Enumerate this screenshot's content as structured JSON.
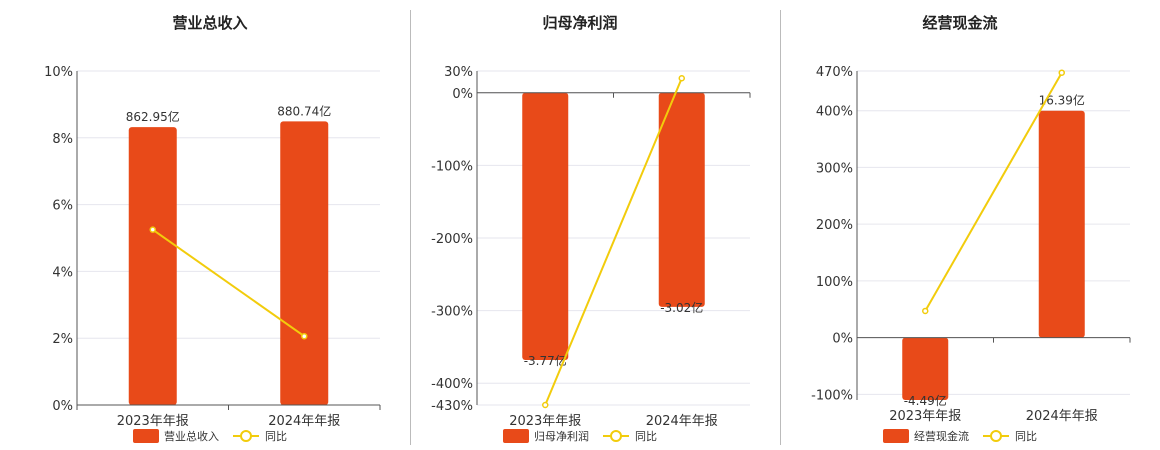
{
  "colors": {
    "bar": "#E84A19",
    "line": "#F2CC0C",
    "grid": "#E6E6EE",
    "axis": "#555555"
  },
  "legend": {
    "ratio_label": "同比"
  },
  "chart_data": [
    {
      "type": "bar",
      "title": "营业总收入",
      "categories": [
        "2023年年报",
        "2024年年报"
      ],
      "series": [
        {
          "name": "营业总收入",
          "values": [
            862.95,
            880.74
          ],
          "value_labels": [
            "862.95亿",
            "880.74亿"
          ]
        },
        {
          "name": "同比",
          "type": "line",
          "values": [
            5.25,
            2.06
          ]
        }
      ],
      "ylim": [
        0,
        10
      ],
      "yticks": [
        "0%",
        "2%",
        "4%",
        "6%",
        "8%",
        "10%"
      ],
      "ytick_values": [
        0,
        2,
        4,
        6,
        8,
        10
      ],
      "grid": true,
      "legend": "bottom"
    },
    {
      "type": "bar",
      "title": "归母净利润",
      "categories": [
        "2023年年报",
        "2024年年报"
      ],
      "series": [
        {
          "name": "归母净利润",
          "values": [
            -3.77,
            -3.02
          ],
          "value_labels": [
            "-3.77亿",
            "-3.02亿"
          ]
        },
        {
          "name": "同比",
          "type": "line",
          "values": [
            -430,
            20
          ]
        }
      ],
      "ylim": [
        -430,
        30
      ],
      "yticks": [
        "-430%",
        "-400%",
        "-300%",
        "-200%",
        "-100%",
        "0%",
        "30%"
      ],
      "ytick_values": [
        -430,
        -400,
        -300,
        -200,
        -100,
        0,
        30
      ],
      "grid": true,
      "legend": "bottom"
    },
    {
      "type": "bar",
      "title": "经营现金流",
      "categories": [
        "2023年年报",
        "2024年年报"
      ],
      "series": [
        {
          "name": "经营现金流",
          "values": [
            -4.49,
            16.39
          ],
          "value_labels": [
            "-4.49亿",
            "16.39亿"
          ]
        },
        {
          "name": "同比",
          "type": "line",
          "values": [
            47,
            467
          ]
        }
      ],
      "ylim": [
        -110,
        470
      ],
      "yticks": [
        "-100%",
        "0%",
        "100%",
        "200%",
        "300%",
        "400%",
        "470%"
      ],
      "ytick_values": [
        -100,
        0,
        100,
        200,
        300,
        400,
        470
      ],
      "grid": true,
      "legend": "bottom"
    }
  ]
}
